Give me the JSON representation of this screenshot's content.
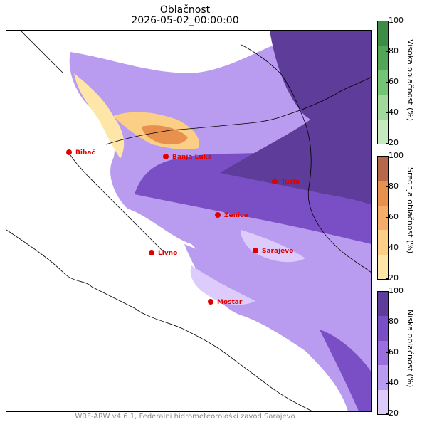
{
  "title": "Oblačnost",
  "timestamp": "2026-05-02_00:00:00",
  "credit": "WRF-ARW v4.6.1, Federalni hidrometeorološki zavod Sarajevo",
  "cities": [
    {
      "name": "Bihać"
    },
    {
      "name": "Banja Luka"
    },
    {
      "name": "Tuzla"
    },
    {
      "name": "Zenica"
    },
    {
      "name": "Livno"
    },
    {
      "name": "Sarajevo"
    },
    {
      "name": "Mostar"
    }
  ],
  "colorbars": [
    {
      "label": "Visoka oblačnost (%)",
      "ticks": [
        "100",
        "80",
        "60",
        "40",
        "20"
      ],
      "colors": [
        "#3d8b45",
        "#53a557",
        "#74c476",
        "#a1d99b",
        "#c7e9c0"
      ]
    },
    {
      "label": "Srednja oblačnost (%)",
      "ticks": [
        "100",
        "80",
        "60",
        "40",
        "20"
      ],
      "colors": [
        "#b5694a",
        "#e8914f",
        "#f4ae6a",
        "#fbcf86",
        "#fde6a8"
      ]
    },
    {
      "label": "Niska oblačnost (%)",
      "ticks": [
        "100",
        "80",
        "60",
        "40",
        "20"
      ],
      "colors": [
        "#5e3c99",
        "#7a4fc6",
        "#9b6ee0",
        "#b99cf0",
        "#dccbfb"
      ]
    }
  ],
  "colors": {
    "city_marker": "#e00000",
    "border": "#000000"
  }
}
